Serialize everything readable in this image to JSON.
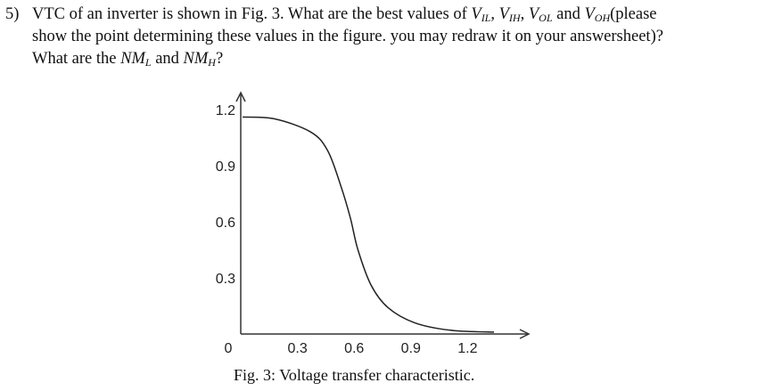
{
  "question": {
    "number": "5)",
    "line1_a": "VTC of an inverter is shown in Fig. 3. What are the best values of ",
    "v_il": {
      "base": "V",
      "sub": "IL"
    },
    "v_ih": {
      "base": "V",
      "sub": "IH"
    },
    "v_ol": {
      "base": "V",
      "sub": "OL"
    },
    "and": " and ",
    "v_oh": {
      "base": "V",
      "sub": "OH"
    },
    "line1_b": "(please",
    "line2": "show the point determining these values in the figure. you may redraw it on your answersheet)?",
    "line3_a": "What are the ",
    "nml": {
      "base": "NM",
      "sub": "L"
    },
    "nmh": {
      "base": "NM",
      "sub": "H"
    },
    "q_mark": "?"
  },
  "chart_data": {
    "type": "line",
    "title": "",
    "caption": "Fig. 3: Voltage transfer characteristic.",
    "xlabel": "",
    "ylabel": "",
    "xlim": [
      0,
      1.45
    ],
    "ylim": [
      0,
      1.3
    ],
    "x_ticks": [
      "0",
      "0.3",
      "0.6",
      "0.9",
      "1.2"
    ],
    "x_tick_values": [
      0,
      0.3,
      0.6,
      0.9,
      1.2
    ],
    "y_ticks": [
      "1.2",
      "0.9",
      "0.6",
      "0.3"
    ],
    "y_tick_values": [
      1.2,
      0.9,
      0.6,
      0.3
    ],
    "grid": false,
    "series": [
      {
        "name": "VTC",
        "x": [
          0.01,
          0.18,
          0.37,
          0.46,
          0.53,
          0.58,
          0.62,
          0.69,
          0.78,
          0.92,
          1.11,
          1.34
        ],
        "y": [
          1.16,
          1.15,
          1.08,
          0.98,
          0.79,
          0.62,
          0.45,
          0.26,
          0.14,
          0.06,
          0.02,
          0.01
        ]
      }
    ]
  }
}
